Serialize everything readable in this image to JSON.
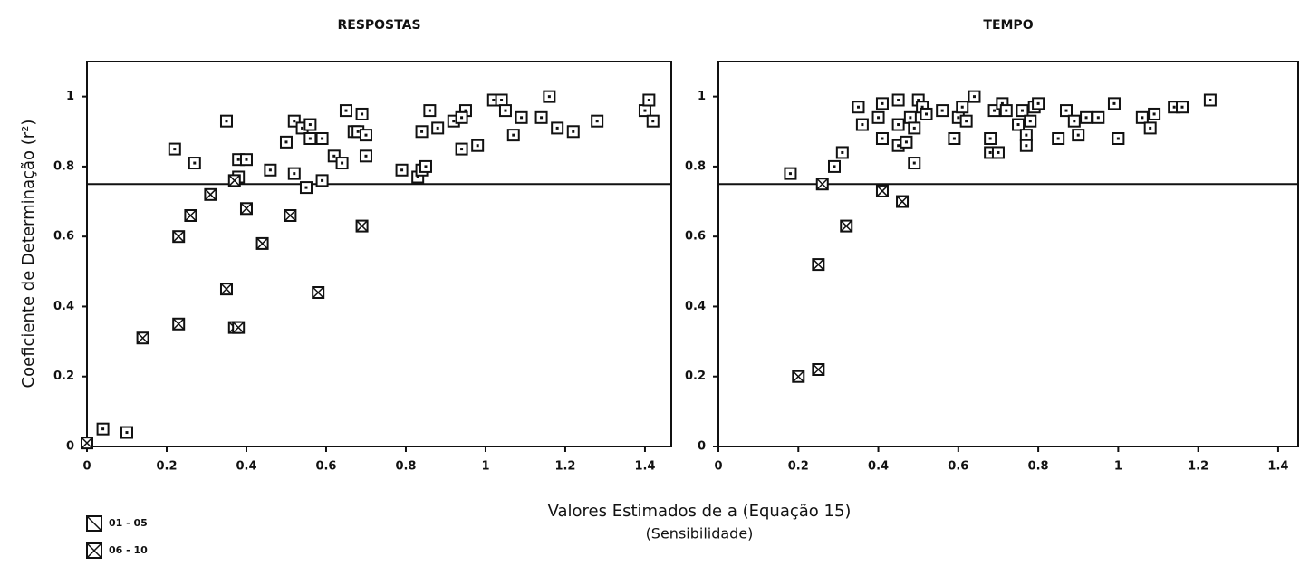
{
  "chart_data": [
    {
      "type": "scatter",
      "title": "RESPOSTAS",
      "xlim": [
        0,
        1.466
      ],
      "ylim": [
        0,
        1.1
      ],
      "xticks": [
        0,
        0.2,
        0.4,
        0.6,
        0.8,
        1,
        1.2,
        1.4
      ],
      "yticks": [
        0,
        0.2,
        0.4,
        0.6,
        0.8,
        1
      ],
      "hline": 0.75,
      "color": "#111",
      "series": [
        {
          "marker": "box",
          "x": [
            0.04,
            0.1,
            0.22,
            0.27,
            0.35,
            0.38,
            0.38,
            0.4,
            0.46,
            0.5,
            0.52,
            0.52,
            0.54,
            0.55,
            0.56,
            0.56,
            0.59,
            0.59,
            0.62,
            0.64,
            0.65,
            0.67,
            0.68,
            0.69,
            0.7,
            0.7,
            0.79,
            0.83,
            0.84,
            0.84,
            0.85,
            0.86,
            0.88,
            0.92,
            0.94,
            0.95,
            0.94,
            0.98,
            1.02,
            1.04,
            1.05,
            1.07,
            1.09,
            1.14,
            1.16,
            1.18,
            1.22,
            1.28,
            1.4,
            1.41,
            1.42
          ],
          "values": [
            0.05,
            0.04,
            0.85,
            0.81,
            0.93,
            0.82,
            0.77,
            0.82,
            0.79,
            0.87,
            0.93,
            0.78,
            0.91,
            0.74,
            0.92,
            0.88,
            0.88,
            0.76,
            0.83,
            0.81,
            0.96,
            0.9,
            0.9,
            0.95,
            0.89,
            0.83,
            0.79,
            0.77,
            0.79,
            0.9,
            0.8,
            0.96,
            0.91,
            0.93,
            0.85,
            0.96,
            0.94,
            0.86,
            0.99,
            0.99,
            0.96,
            0.89,
            0.94,
            0.94,
            1.0,
            0.91,
            0.9,
            0.93,
            0.96,
            0.99,
            0.93
          ]
        },
        {
          "marker": "box-x",
          "x": [
            0.0,
            0.14,
            0.23,
            0.23,
            0.26,
            0.31,
            0.35,
            0.37,
            0.37,
            0.38,
            0.4,
            0.44,
            0.51,
            0.58,
            0.69
          ],
          "values": [
            0.01,
            0.31,
            0.6,
            0.35,
            0.66,
            0.72,
            0.45,
            0.76,
            0.34,
            0.34,
            0.68,
            0.58,
            0.66,
            0.44,
            0.63
          ]
        }
      ]
    },
    {
      "type": "scatter",
      "title": "TEMPO",
      "xlim": [
        0,
        1.45
      ],
      "ylim": [
        0,
        1.1
      ],
      "xticks": [
        0,
        0.2,
        0.4,
        0.6,
        0.8,
        1,
        1.2,
        1.4
      ],
      "yticks": [
        0,
        0.2,
        0.4,
        0.6,
        0.8,
        1
      ],
      "hline": 0.75,
      "color": "#111",
      "series": [
        {
          "marker": "box",
          "x": [
            0.18,
            0.29,
            0.31,
            0.35,
            0.36,
            0.4,
            0.41,
            0.41,
            0.45,
            0.45,
            0.45,
            0.47,
            0.48,
            0.49,
            0.49,
            0.5,
            0.51,
            0.52,
            0.56,
            0.59,
            0.6,
            0.61,
            0.62,
            0.64,
            0.68,
            0.68,
            0.69,
            0.7,
            0.71,
            0.72,
            0.75,
            0.76,
            0.77,
            0.77,
            0.78,
            0.79,
            0.8,
            0.85,
            0.87,
            0.89,
            0.9,
            0.92,
            0.95,
            0.99,
            1.0,
            1.06,
            1.08,
            1.09,
            1.14,
            1.16,
            1.23
          ],
          "values": [
            0.78,
            0.8,
            0.84,
            0.97,
            0.92,
            0.94,
            0.88,
            0.98,
            0.99,
            0.92,
            0.86,
            0.87,
            0.94,
            0.91,
            0.81,
            0.99,
            0.97,
            0.95,
            0.96,
            0.88,
            0.94,
            0.97,
            0.93,
            1.0,
            0.88,
            0.84,
            0.96,
            0.84,
            0.98,
            0.96,
            0.92,
            0.96,
            0.89,
            0.86,
            0.93,
            0.97,
            0.98,
            0.88,
            0.96,
            0.93,
            0.89,
            0.94,
            0.94,
            0.98,
            0.88,
            0.94,
            0.91,
            0.95,
            0.97,
            0.97,
            0.99
          ]
        },
        {
          "marker": "box-x",
          "x": [
            0.2,
            0.25,
            0.25,
            0.26,
            0.32,
            0.41,
            0.46
          ],
          "values": [
            0.2,
            0.22,
            0.52,
            0.75,
            0.63,
            0.73,
            0.7
          ]
        }
      ]
    }
  ],
  "y_label": "Coeficiente de Determinação (r²)",
  "x_label": "Valores Estimados de a (Equação 15)",
  "x_label_sub": "(Sensibilidade)",
  "legend": [
    {
      "name": "01 - 05",
      "marker": "box-slash"
    },
    {
      "name": "06 - 10",
      "marker": "box-x"
    }
  ]
}
